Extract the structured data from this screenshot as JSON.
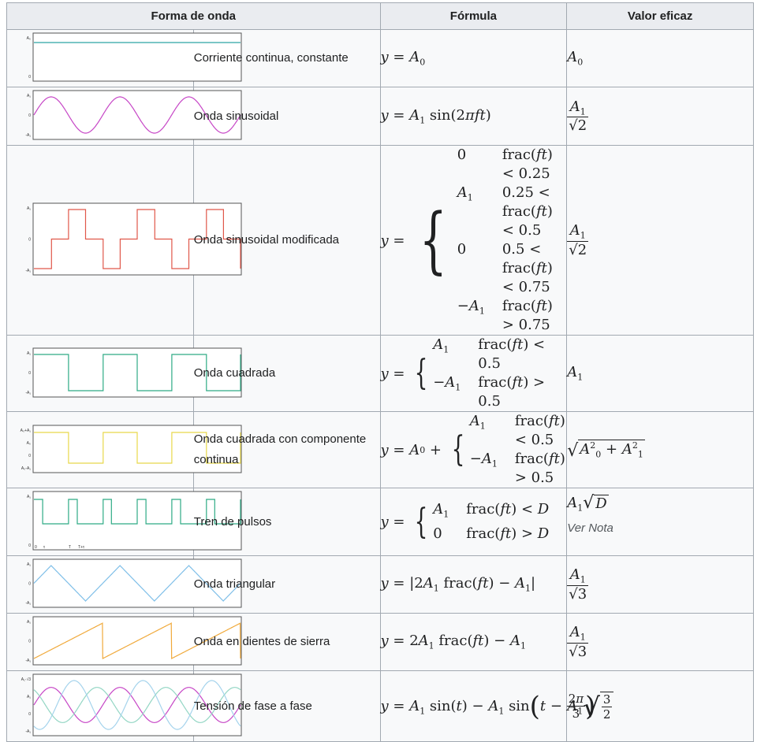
{
  "headers": {
    "waveform": "Forma de onda",
    "formula": "Fórmula",
    "rms": "Valor eficaz"
  },
  "rows": [
    {
      "name": "Corriente continua, constante",
      "plot": {
        "type": "dc",
        "color": "#2ca3a3",
        "labels": [
          "A₀",
          "0"
        ]
      }
    },
    {
      "name": "Onda sinusoidal",
      "plot": {
        "type": "sine",
        "color": "#c646c6",
        "labels": [
          "A₁",
          "0",
          "-A₁"
        ]
      }
    },
    {
      "name": "Onda sinusoidal modificada",
      "plot": {
        "type": "modsine",
        "color": "#e0574a",
        "labels": [
          "A₁",
          "0",
          "-A₁"
        ]
      }
    },
    {
      "name": "Onda cuadrada",
      "plot": {
        "type": "square",
        "color": "#2eab85",
        "labels": [
          "A₁",
          "0",
          "-A₁"
        ]
      }
    },
    {
      "name": "Onda cuadrada con componente continua",
      "plot": {
        "type": "dcsquare",
        "color": "#e8d84a",
        "labels": [
          "A₀+A₁",
          "A₀",
          "0",
          "A₀-A₁"
        ]
      }
    },
    {
      "name": "Tren de pulsos",
      "plot": {
        "type": "pulse",
        "color": "#2eab85",
        "labels": [
          "A₁",
          "0"
        ],
        "xlabels": [
          "0",
          "τ",
          "T",
          "T+τ"
        ]
      },
      "rms_note": "Ver Nota"
    },
    {
      "name": "Onda triangular",
      "plot": {
        "type": "triangle",
        "color": "#7fbfe8",
        "labels": [
          "A₁",
          "0",
          "-A₁"
        ]
      }
    },
    {
      "name": "Onda en dientes de sierra",
      "plot": {
        "type": "saw",
        "color": "#f0a93a",
        "labels": [
          "A₁",
          "0",
          "-A₁"
        ]
      }
    },
    {
      "name": "Tensión de fase a fase",
      "plot": {
        "type": "phase",
        "colors": [
          "#c646c6",
          "#93d6c4",
          "#a4d3ec"
        ],
        "labels": [
          "A₁·√3",
          "A₁",
          "0",
          "-A₁"
        ]
      }
    }
  ]
}
